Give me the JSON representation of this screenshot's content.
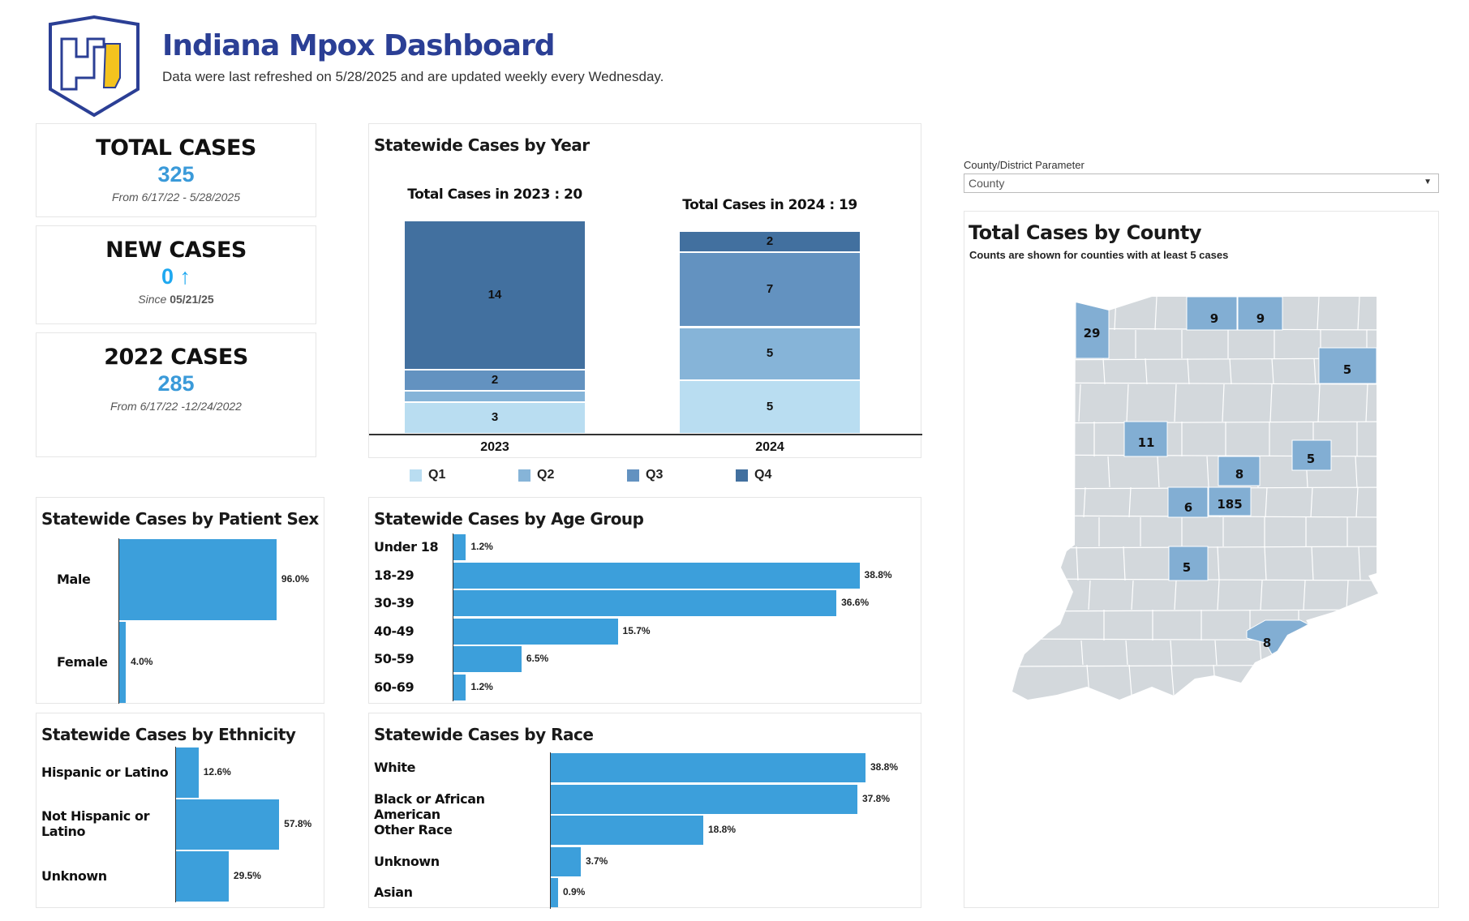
{
  "header": {
    "title": "Indiana Mpox Dashboard",
    "subtitle": "Data were last refreshed on 5/28/2025 and are updated weekly every Wednesday."
  },
  "kpis": [
    {
      "heading": "TOTAL CASES",
      "value": "325",
      "note": "From 6/17/22 - 5/28/2025"
    },
    {
      "heading": "NEW CASES",
      "value": "0",
      "arrow": "↑",
      "note_prefix": "Since",
      "note_date": "05/21/25"
    },
    {
      "heading": "2022 CASES",
      "value": "285",
      "note": "From 6/17/22 -12/24/2022"
    }
  ],
  "colors": {
    "bar": "#3c9fdb",
    "map_highlight": "#82aed3",
    "map_base": "#d3d8dc",
    "q1": "#b9ddf1",
    "q2": "#86b4d8",
    "q3": "#6392c0",
    "q4": "#42709f"
  },
  "chart_data": [
    {
      "type": "bar",
      "title": "Statewide Cases by Year",
      "stacked": true,
      "categories": [
        "2023",
        "2024"
      ],
      "subtitles": [
        "Total Cases in 2023 : 20",
        "Total Cases in 2024 : 19"
      ],
      "legend": [
        "Q1",
        "Q2",
        "Q3",
        "Q4"
      ],
      "legend_position": "bottom",
      "series": [
        {
          "name": "Q1",
          "values": [
            3,
            5
          ]
        },
        {
          "name": "Q2",
          "values": [
            1,
            5
          ]
        },
        {
          "name": "Q3",
          "values": [
            2,
            7
          ]
        },
        {
          "name": "Q4",
          "values": [
            14,
            2
          ]
        }
      ]
    },
    {
      "type": "bar",
      "orientation": "horizontal",
      "title": "Statewide Cases by Patient Sex",
      "categories": [
        "Male",
        "Female"
      ],
      "values": [
        96.0,
        4.0
      ],
      "labels": [
        "96.0%",
        "4.0%"
      ]
    },
    {
      "type": "bar",
      "orientation": "horizontal",
      "title": "Statewide Cases by Age Group",
      "categories": [
        "Under 18",
        "18-29",
        "30-39",
        "40-49",
        "50-59",
        "60-69"
      ],
      "values": [
        1.2,
        38.8,
        36.6,
        15.7,
        6.5,
        1.2
      ],
      "labels": [
        "1.2%",
        "38.8%",
        "36.6%",
        "15.7%",
        "6.5%",
        "1.2%"
      ]
    },
    {
      "type": "bar",
      "orientation": "horizontal",
      "title": "Statewide Cases by Ethnicity",
      "categories": [
        "Hispanic or Latino",
        "Not Hispanic or Latino",
        "Unknown"
      ],
      "values": [
        12.6,
        57.8,
        29.5
      ],
      "labels": [
        "12.6%",
        "57.8%",
        "29.5%"
      ]
    },
    {
      "type": "bar",
      "orientation": "horizontal",
      "title": "Statewide Cases by Race",
      "categories": [
        "White",
        "Black or African American",
        "Other Race",
        "Unknown",
        "Asian"
      ],
      "values": [
        38.8,
        37.8,
        18.8,
        3.7,
        0.9
      ],
      "labels": [
        "38.8%",
        "37.8%",
        "18.8%",
        "3.7%",
        "0.9%"
      ]
    }
  ],
  "filter": {
    "label": "County/District Parameter",
    "value": "County"
  },
  "map": {
    "title": "Total Cases by County",
    "subtitle": "Counts are shown for counties with at least 5 cases",
    "counts": [
      "29",
      "9",
      "9",
      "5",
      "11",
      "5",
      "8",
      "6",
      "185",
      "5",
      "8"
    ]
  }
}
